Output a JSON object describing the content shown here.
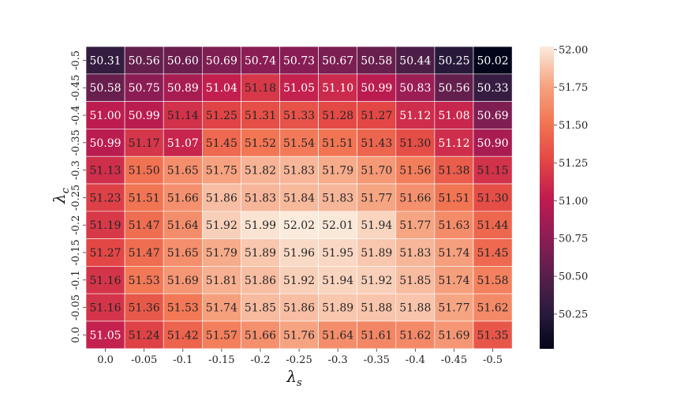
{
  "chart_data": {
    "type": "heatmap",
    "title": "",
    "xlabel": {
      "symbol": "λ",
      "subscript": "s"
    },
    "ylabel": {
      "symbol": "λ",
      "subscript": "c"
    },
    "x_categories": [
      "0.0",
      "-0.05",
      "-0.1",
      "-0.15",
      "-0.2",
      "-0.25",
      "-0.3",
      "-0.35",
      "-0.4",
      "-0.45",
      "-0.5"
    ],
    "y_categories": [
      "-0.5",
      "-0.45",
      "-0.4",
      "-0.35",
      "-0.3",
      "-0.25",
      "-0.2",
      "-0.15",
      "-0.1",
      "-0.05",
      "0.0"
    ],
    "values": [
      [
        "50.31",
        "50.56",
        "50.60",
        "50.69",
        "50.74",
        "50.73",
        "50.67",
        "50.58",
        "50.44",
        "50.25",
        "50.02"
      ],
      [
        "50.58",
        "50.75",
        "50.89",
        "51.04",
        "51.18",
        "51.05",
        "51.10",
        "50.99",
        "50.83",
        "50.56",
        "50.33"
      ],
      [
        "51.00",
        "50.99",
        "51.14",
        "51.25",
        "51.31",
        "51.33",
        "51.28",
        "51.27",
        "51.12",
        "51.08",
        "50.69"
      ],
      [
        "50.99",
        "51.17",
        "51.07",
        "51.45",
        "51.52",
        "51.54",
        "51.51",
        "51.43",
        "51.30",
        "51.12",
        "50.90"
      ],
      [
        "51.13",
        "51.50",
        "51.65",
        "51.75",
        "51.82",
        "51.83",
        "51.79",
        "51.70",
        "51.56",
        "51.38",
        "51.15"
      ],
      [
        "51.23",
        "51.51",
        "51.66",
        "51.86",
        "51.83",
        "51.84",
        "51.83",
        "51.77",
        "51.66",
        "51.51",
        "51.30"
      ],
      [
        "51.19",
        "51.47",
        "51.64",
        "51.92",
        "51.99",
        "52.02",
        "52.01",
        "51.94",
        "51.77",
        "51.63",
        "51.44"
      ],
      [
        "51.27",
        "51.47",
        "51.65",
        "51.79",
        "51.89",
        "51.96",
        "51.95",
        "51.89",
        "51.83",
        "51.74",
        "51.45"
      ],
      [
        "51.16",
        "51.53",
        "51.69",
        "51.81",
        "51.86",
        "51.92",
        "51.94",
        "51.92",
        "51.85",
        "51.74",
        "51.58"
      ],
      [
        "51.16",
        "51.36",
        "51.53",
        "51.74",
        "51.85",
        "51.86",
        "51.89",
        "51.88",
        "51.88",
        "51.77",
        "51.62"
      ],
      [
        "51.05",
        "51.24",
        "51.42",
        "51.57",
        "51.66",
        "51.76",
        "51.64",
        "51.61",
        "51.62",
        "51.69",
        "51.35"
      ]
    ],
    "colorbar": {
      "min": 50.02,
      "max": 52.02,
      "ticks": [
        "52.00",
        "51.75",
        "51.50",
        "51.25",
        "51.00",
        "50.75",
        "50.50",
        "50.25"
      ],
      "colormap": "rocket"
    }
  }
}
